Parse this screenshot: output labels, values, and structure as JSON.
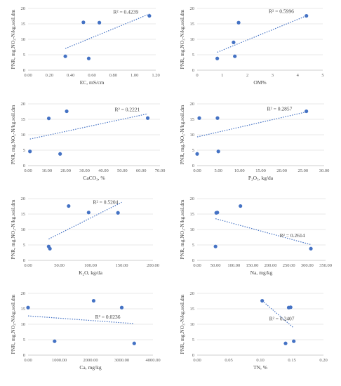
{
  "chart_data": [
    {
      "type": "scatter",
      "xlabel": "EC, mS/cm",
      "ylabel": "PNR, mg.NO3-N/kg.soil.dm",
      "xlim": [
        0,
        1.2
      ],
      "xticks": [
        "0.00",
        "0.20",
        "0.40",
        "0.60",
        "0.80",
        "1.00",
        "1.20"
      ],
      "ylim": [
        0,
        20
      ],
      "yticks": [
        "0",
        "5",
        "10",
        "15",
        "20"
      ],
      "points": [
        [
          0.35,
          4.5
        ],
        [
          0.52,
          15.5
        ],
        [
          0.57,
          3.8
        ],
        [
          0.67,
          15.4
        ],
        [
          1.14,
          17.6
        ]
      ],
      "trendline": {
        "x": [
          0.35,
          1.14
        ],
        "y": [
          7.0,
          18.2
        ]
      },
      "r2": "R² = 0.4239",
      "r2_pos": [
        0.8,
        18.3
      ]
    },
    {
      "type": "scatter",
      "xlabel": "OM%",
      "ylabel": "PNR, mg.NO3-N/kg.soil.dm",
      "xlim": [
        0,
        5
      ],
      "xticks": [
        "0",
        "1",
        "2",
        "3",
        "4",
        "5"
      ],
      "ylim": [
        0,
        20
      ],
      "yticks": [
        "0",
        "5",
        "10",
        "15",
        "20"
      ],
      "points": [
        [
          0.8,
          3.8
        ],
        [
          1.45,
          9.0
        ],
        [
          1.5,
          4.5
        ],
        [
          1.65,
          15.4
        ],
        [
          4.35,
          17.6
        ]
      ],
      "trendline": {
        "x": [
          0.8,
          4.35
        ],
        "y": [
          5.8,
          17.6
        ]
      },
      "r2": "R² = 0.5996",
      "r2_pos": [
        2.85,
        18.5
      ]
    },
    {
      "type": "scatter",
      "xlabel": "CaCO3, %",
      "ylabel": "PNR, mg.NO3-N/kg.soil.dm",
      "xlim": [
        0,
        70
      ],
      "xticks": [
        "0.00",
        "10.00",
        "20.00",
        "30.00",
        "40.00",
        "50.00",
        "60.00",
        "70.00"
      ],
      "ylim": [
        0,
        20
      ],
      "yticks": [
        "0",
        "5",
        "10",
        "15",
        "20"
      ],
      "points": [
        [
          1.0,
          4.6
        ],
        [
          11.0,
          15.3
        ],
        [
          17.0,
          3.8
        ],
        [
          20.5,
          17.6
        ],
        [
          63.5,
          15.4
        ]
      ],
      "trendline": {
        "x": [
          1.0,
          63.5
        ],
        "y": [
          8.6,
          16.8
        ]
      },
      "r2": "R² = 0.2221",
      "r2_pos": [
        46,
        17.6
      ]
    },
    {
      "type": "scatter",
      "xlabel": "P2O5, kg/da",
      "ylabel": "PNR, mg.NO3-N/kg.soil.dm",
      "xlim": [
        0,
        30
      ],
      "xticks": [
        "0.00",
        "5.00",
        "10.00",
        "15.00",
        "20.00",
        "25.00",
        "30.00"
      ],
      "ylim": [
        0,
        20
      ],
      "yticks": [
        "0",
        "5",
        "10",
        "15",
        "20"
      ],
      "points": [
        [
          0.0,
          3.8
        ],
        [
          0.5,
          15.4
        ],
        [
          4.8,
          15.4
        ],
        [
          5.0,
          4.6
        ],
        [
          25.8,
          17.6
        ]
      ],
      "trendline": {
        "x": [
          0.0,
          25.8
        ],
        "y": [
          9.3,
          17.4
        ]
      },
      "r2": "R² = 0.2857",
      "r2_pos": [
        16.5,
        17.8
      ]
    },
    {
      "type": "scatter",
      "xlabel": "K2O, kg/da",
      "ylabel": "PNR, mg.NO3-N/kg.soil.dm",
      "xlim": [
        0,
        200
      ],
      "xticks": [
        "0.00",
        "50.00",
        "100.00",
        "150.00",
        "200.00"
      ],
      "ylim": [
        0,
        20
      ],
      "yticks": [
        "0",
        "5",
        "10",
        "15",
        "20"
      ],
      "points": [
        [
          33,
          4.5
        ],
        [
          35,
          3.8
        ],
        [
          65,
          17.6
        ],
        [
          97,
          15.5
        ],
        [
          144,
          15.4
        ]
      ],
      "trendline": {
        "x": [
          33,
          150
        ],
        "y": [
          6.9,
          18.8
        ]
      },
      "r2": "R² = 0.5204",
      "r2_pos": [
        104,
        18.3
      ]
    },
    {
      "type": "scatter",
      "xlabel": "Na, mg/kg",
      "ylabel": "PNR, mg.NO3-N/kg.soil.dm",
      "xlim": [
        0,
        350
      ],
      "xticks": [
        "0.00",
        "50.00",
        "100.00",
        "150.00",
        "200.00",
        "250.00",
        "300.00",
        "350.00"
      ],
      "ylim": [
        0,
        20
      ],
      "yticks": [
        "0",
        "5",
        "10",
        "15",
        "20"
      ],
      "points": [
        [
          50,
          4.5
        ],
        [
          52,
          15.4
        ],
        [
          55,
          15.5
        ],
        [
          118,
          17.6
        ],
        [
          310,
          3.8
        ]
      ],
      "trendline": {
        "x": [
          50,
          310
        ],
        "y": [
          13.5,
          5.1
        ]
      },
      "r2": "R² = 0.2614",
      "r2_pos": [
        225,
        7.5
      ]
    },
    {
      "type": "scatter",
      "xlabel": "Ca, mg/kg",
      "ylabel": "PNR, mg.NO3-N/kg.soil.dm",
      "xlim": [
        0,
        4000
      ],
      "xticks": [
        "0.00",
        "1000.00",
        "2000.00",
        "3000.00",
        "4000.00"
      ],
      "ylim": [
        0,
        20
      ],
      "yticks": [
        "0",
        "5",
        "10",
        "15",
        "20"
      ],
      "points": [
        [
          0,
          15.4
        ],
        [
          850,
          4.5
        ],
        [
          2100,
          17.6
        ],
        [
          3000,
          15.4
        ],
        [
          3400,
          3.8
        ]
      ],
      "trendline": {
        "x": [
          0,
          3400
        ],
        "y": [
          12.7,
          10.2
        ]
      },
      "r2": "R² = 0.0236",
      "r2_pos": [
        2150,
        11.8
      ]
    },
    {
      "type": "scatter",
      "xlabel": "TN, %",
      "ylabel": "PNR, mg.NO3-N/kg.soil.dm",
      "xlim": [
        0,
        0.2
      ],
      "xticks": [
        "0.00",
        "0.05",
        "0.10",
        "0.15",
        "0.20"
      ],
      "ylim": [
        0,
        20
      ],
      "yticks": [
        "0",
        "5",
        "10",
        "15",
        "20"
      ],
      "points": [
        [
          0.103,
          17.6
        ],
        [
          0.14,
          3.8
        ],
        [
          0.145,
          15.4
        ],
        [
          0.148,
          15.5
        ],
        [
          0.153,
          4.5
        ]
      ],
      "trendline": {
        "x": [
          0.103,
          0.153
        ],
        "y": [
          17.6,
          8.8
        ]
      },
      "r2": "R² = 0.2407",
      "r2_pos": [
        0.114,
        11.3
      ]
    }
  ]
}
